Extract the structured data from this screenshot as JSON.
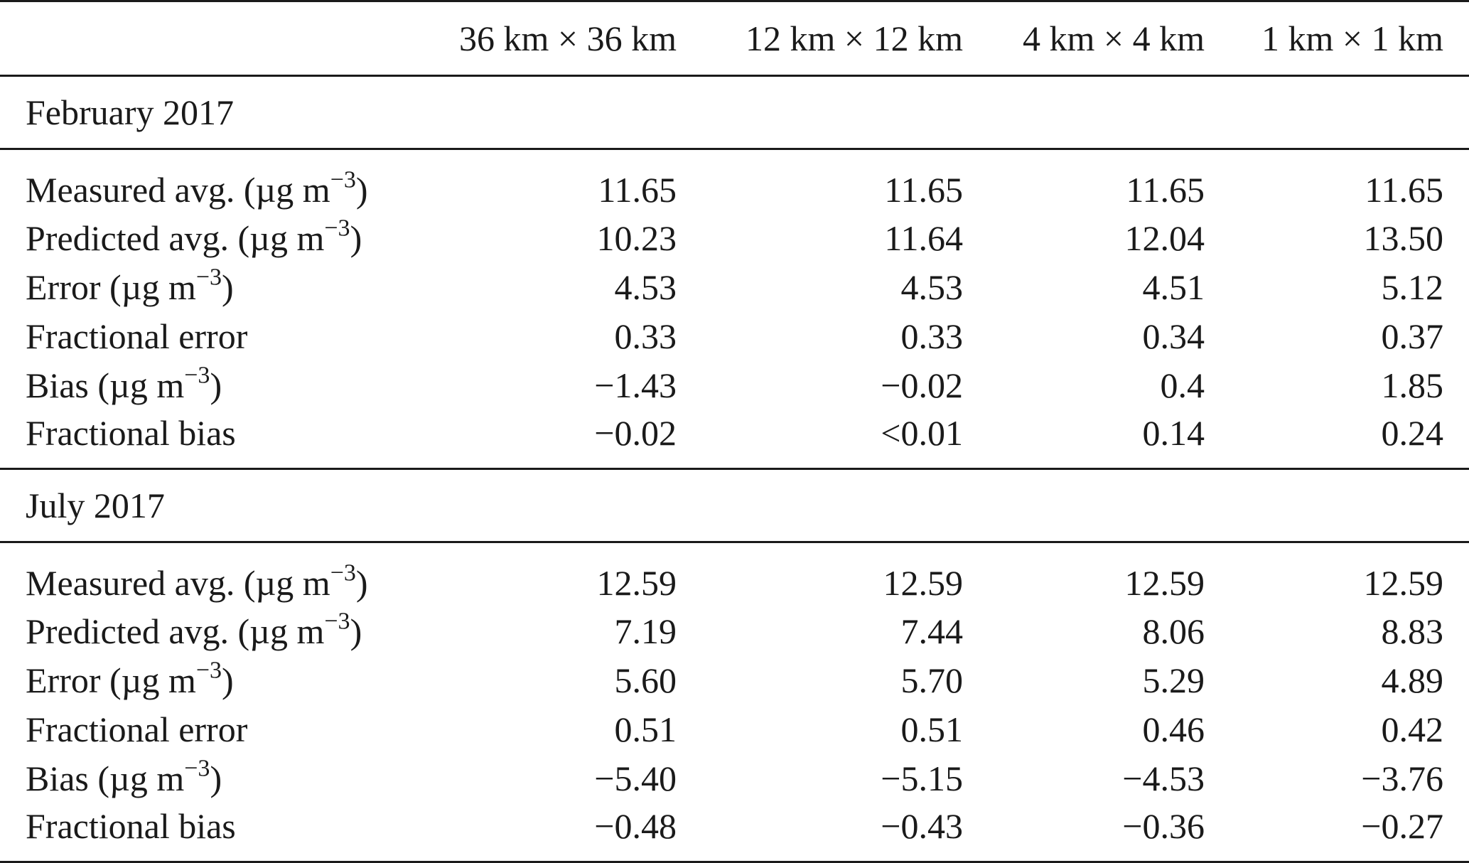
{
  "table": {
    "columns": [
      "",
      "36 km × 36 km",
      "12 km × 12 km",
      "4 km × 4 km",
      "1 km × 1 km"
    ],
    "sections": [
      {
        "title": "February 2017",
        "rows": [
          {
            "label_main": "Measured avg. (µg m",
            "label_sup": "−3",
            "label_tail": ")",
            "values": [
              "11.65",
              "11.65",
              "11.65",
              "11.65"
            ]
          },
          {
            "label_main": "Predicted avg. (µg m",
            "label_sup": "−3",
            "label_tail": ")",
            "values": [
              "10.23",
              "11.64",
              "12.04",
              "13.50"
            ]
          },
          {
            "label_main": "Error (µg m",
            "label_sup": "−3",
            "label_tail": ")",
            "values": [
              "4.53",
              "4.53",
              "4.51",
              "5.12"
            ]
          },
          {
            "label_main": "Fractional error",
            "label_sup": "",
            "label_tail": "",
            "values": [
              "0.33",
              "0.33",
              "0.34",
              "0.37"
            ]
          },
          {
            "label_main": "Bias (µg m",
            "label_sup": "−3",
            "label_tail": ")",
            "values": [
              "−1.43",
              "−0.02",
              "0.4",
              "1.85"
            ]
          },
          {
            "label_main": "Fractional bias",
            "label_sup": "",
            "label_tail": "",
            "values": [
              "−0.02",
              "<0.01",
              "0.14",
              "0.24"
            ]
          }
        ]
      },
      {
        "title": "July 2017",
        "rows": [
          {
            "label_main": "Measured avg. (µg m",
            "label_sup": "−3",
            "label_tail": ")",
            "values": [
              "12.59",
              "12.59",
              "12.59",
              "12.59"
            ]
          },
          {
            "label_main": "Predicted avg. (µg m",
            "label_sup": "−3",
            "label_tail": ")",
            "values": [
              "7.19",
              "7.44",
              "8.06",
              "8.83"
            ]
          },
          {
            "label_main": "Error (µg m",
            "label_sup": "−3",
            "label_tail": ")",
            "values": [
              "5.60",
              "5.70",
              "5.29",
              "4.89"
            ]
          },
          {
            "label_main": "Fractional error",
            "label_sup": "",
            "label_tail": "",
            "values": [
              "0.51",
              "0.51",
              "0.46",
              "0.42"
            ]
          },
          {
            "label_main": "Bias (µg m",
            "label_sup": "−3",
            "label_tail": ")",
            "values": [
              "−5.40",
              "−5.15",
              "−4.53",
              "−3.76"
            ]
          },
          {
            "label_main": "Fractional bias",
            "label_sup": "",
            "label_tail": "",
            "values": [
              "−0.48",
              "−0.43",
              "−0.36",
              "−0.27"
            ]
          }
        ]
      }
    ]
  }
}
